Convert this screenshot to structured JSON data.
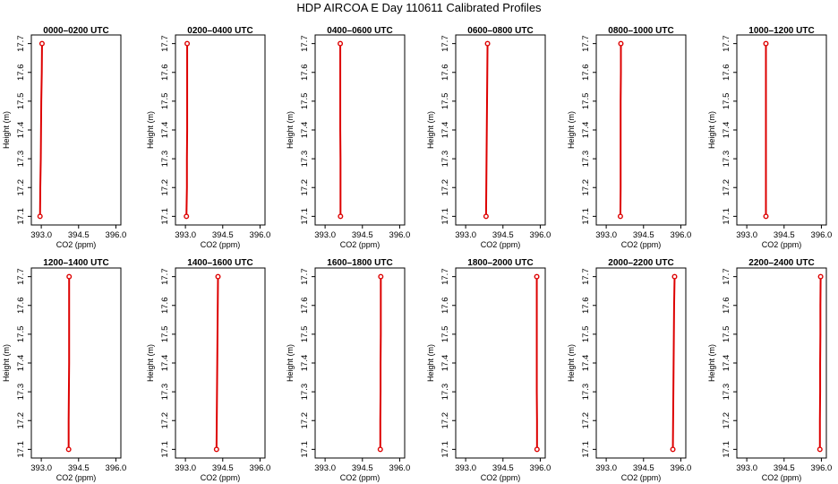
{
  "figure": {
    "title": "HDP AIRCOA E  Day 110611  Calibrated Profiles"
  },
  "colors": {
    "profile": "#dd0000",
    "axis": "#000000"
  },
  "chart_data": [
    {
      "type": "line",
      "title": "0000–0200 UTC",
      "xlabel": "CO2 (ppm)",
      "ylabel": "Height (m)",
      "xlim": [
        392.6,
        396.2
      ],
      "ylim": [
        17.07,
        17.73
      ],
      "xticks": [
        "393.0",
        "394.5",
        "396.0"
      ],
      "yticks": [
        "17.1",
        "17.2",
        "17.3",
        "17.4",
        "17.5",
        "17.6",
        "17.7"
      ],
      "x": [
        392.95,
        392.96,
        392.98,
        392.99,
        393.0,
        393.02,
        393.03
      ],
      "y": [
        17.1,
        17.2,
        17.3,
        17.4,
        17.5,
        17.6,
        17.7
      ]
    },
    {
      "type": "line",
      "title": "0200–0400 UTC",
      "xlabel": "CO2 (ppm)",
      "ylabel": "Height (m)",
      "xlim": [
        392.6,
        396.2
      ],
      "ylim": [
        17.07,
        17.73
      ],
      "xticks": [
        "393.0",
        "394.5",
        "396.0"
      ],
      "yticks": [
        "17.1",
        "17.2",
        "17.3",
        "17.4",
        "17.5",
        "17.6",
        "17.7"
      ],
      "x": [
        393.04,
        393.06,
        393.06,
        393.07,
        393.07,
        393.07,
        393.07
      ],
      "y": [
        17.1,
        17.2,
        17.3,
        17.4,
        17.5,
        17.6,
        17.7
      ]
    },
    {
      "type": "line",
      "title": "0400–0600 UTC",
      "xlabel": "CO2 (ppm)",
      "ylabel": "Height (m)",
      "xlim": [
        392.6,
        396.2
      ],
      "ylim": [
        17.07,
        17.73
      ],
      "xticks": [
        "393.0",
        "394.5",
        "396.0"
      ],
      "yticks": [
        "17.1",
        "17.2",
        "17.3",
        "17.4",
        "17.5",
        "17.6",
        "17.7"
      ],
      "x": [
        393.62,
        393.62,
        393.62,
        393.61,
        393.61,
        393.61,
        393.61
      ],
      "y": [
        17.1,
        17.2,
        17.3,
        17.4,
        17.5,
        17.6,
        17.7
      ]
    },
    {
      "type": "line",
      "title": "0600–0800 UTC",
      "xlabel": "CO2 (ppm)",
      "ylabel": "Height (m)",
      "xlim": [
        392.6,
        396.2
      ],
      "ylim": [
        17.07,
        17.73
      ],
      "xticks": [
        "393.0",
        "394.5",
        "396.0"
      ],
      "yticks": [
        "17.1",
        "17.2",
        "17.3",
        "17.4",
        "17.5",
        "17.6",
        "17.7"
      ],
      "x": [
        393.82,
        393.83,
        393.84,
        393.85,
        393.86,
        393.87,
        393.88
      ],
      "y": [
        17.1,
        17.2,
        17.3,
        17.4,
        17.5,
        17.6,
        17.7
      ]
    },
    {
      "type": "line",
      "title": "0800–1000 UTC",
      "xlabel": "CO2 (ppm)",
      "ylabel": "Height (m)",
      "xlim": [
        392.6,
        396.2
      ],
      "ylim": [
        17.07,
        17.73
      ],
      "xticks": [
        "393.0",
        "394.5",
        "396.0"
      ],
      "yticks": [
        "17.1",
        "17.2",
        "17.3",
        "17.4",
        "17.5",
        "17.6",
        "17.7"
      ],
      "x": [
        393.57,
        393.58,
        393.58,
        393.58,
        393.58,
        393.59,
        393.59
      ],
      "y": [
        17.1,
        17.2,
        17.3,
        17.4,
        17.5,
        17.6,
        17.7
      ]
    },
    {
      "type": "line",
      "title": "1000–1200 UTC",
      "xlabel": "CO2 (ppm)",
      "ylabel": "Height (m)",
      "xlim": [
        392.6,
        396.2
      ],
      "ylim": [
        17.07,
        17.73
      ],
      "xticks": [
        "393.0",
        "394.5",
        "396.0"
      ],
      "yticks": [
        "17.1",
        "17.2",
        "17.3",
        "17.4",
        "17.5",
        "17.6",
        "17.7"
      ],
      "x": [
        393.77,
        393.77,
        393.77,
        393.77,
        393.77,
        393.77,
        393.77
      ],
      "y": [
        17.1,
        17.2,
        17.3,
        17.4,
        17.5,
        17.6,
        17.7
      ]
    },
    {
      "type": "line",
      "title": "1200–1400 UTC",
      "xlabel": "CO2 (ppm)",
      "ylabel": "Height (m)",
      "xlim": [
        392.6,
        396.2
      ],
      "ylim": [
        17.07,
        17.73
      ],
      "xticks": [
        "393.0",
        "394.5",
        "396.0"
      ],
      "yticks": [
        "17.1",
        "17.2",
        "17.3",
        "17.4",
        "17.5",
        "17.6",
        "17.7"
      ],
      "x": [
        394.1,
        394.1,
        394.11,
        394.12,
        394.12,
        394.12,
        394.12
      ],
      "y": [
        17.1,
        17.2,
        17.3,
        17.4,
        17.5,
        17.6,
        17.7
      ]
    },
    {
      "type": "line",
      "title": "1400–1600 UTC",
      "xlabel": "CO2 (ppm)",
      "ylabel": "Height (m)",
      "xlim": [
        392.6,
        396.2
      ],
      "ylim": [
        17.07,
        17.73
      ],
      "xticks": [
        "393.0",
        "394.5",
        "396.0"
      ],
      "yticks": [
        "17.1",
        "17.2",
        "17.3",
        "17.4",
        "17.5",
        "17.6",
        "17.7"
      ],
      "x": [
        394.25,
        394.26,
        394.27,
        394.28,
        394.29,
        394.3,
        394.31
      ],
      "y": [
        17.1,
        17.2,
        17.3,
        17.4,
        17.5,
        17.6,
        17.7
      ]
    },
    {
      "type": "line",
      "title": "1600–1800 UTC",
      "xlabel": "CO2 (ppm)",
      "ylabel": "Height (m)",
      "xlim": [
        392.6,
        396.2
      ],
      "ylim": [
        17.07,
        17.73
      ],
      "xticks": [
        "393.0",
        "394.5",
        "396.0"
      ],
      "yticks": [
        "17.1",
        "17.2",
        "17.3",
        "17.4",
        "17.5",
        "17.6",
        "17.7"
      ],
      "x": [
        395.22,
        395.22,
        395.23,
        395.23,
        395.24,
        395.24,
        395.24
      ],
      "y": [
        17.1,
        17.2,
        17.3,
        17.4,
        17.5,
        17.6,
        17.7
      ]
    },
    {
      "type": "line",
      "title": "1800–2000 UTC",
      "xlabel": "CO2 (ppm)",
      "ylabel": "Height (m)",
      "xlim": [
        392.6,
        396.2
      ],
      "ylim": [
        17.07,
        17.73
      ],
      "xticks": [
        "393.0",
        "394.5",
        "396.0"
      ],
      "yticks": [
        "17.1",
        "17.2",
        "17.3",
        "17.4",
        "17.5",
        "17.6",
        "17.7"
      ],
      "x": [
        395.87,
        395.87,
        395.86,
        395.86,
        395.86,
        395.86,
        395.86
      ],
      "y": [
        17.1,
        17.2,
        17.3,
        17.4,
        17.5,
        17.6,
        17.7
      ]
    },
    {
      "type": "line",
      "title": "2000–2200 UTC",
      "xlabel": "CO2 (ppm)",
      "ylabel": "Height (m)",
      "xlim": [
        392.6,
        396.2
      ],
      "ylim": [
        17.07,
        17.73
      ],
      "xticks": [
        "393.0",
        "394.5",
        "396.0"
      ],
      "yticks": [
        "17.1",
        "17.2",
        "17.3",
        "17.4",
        "17.5",
        "17.6",
        "17.7"
      ],
      "x": [
        395.68,
        395.69,
        395.7,
        395.71,
        395.72,
        395.73,
        395.75
      ],
      "y": [
        17.1,
        17.2,
        17.3,
        17.4,
        17.5,
        17.6,
        17.7
      ]
    },
    {
      "type": "line",
      "title": "2200–2400 UTC",
      "xlabel": "CO2 (ppm)",
      "ylabel": "Height (m)",
      "xlim": [
        392.6,
        396.2
      ],
      "ylim": [
        17.07,
        17.73
      ],
      "xticks": [
        "393.0",
        "394.5",
        "396.0"
      ],
      "yticks": [
        "17.1",
        "17.2",
        "17.3",
        "17.4",
        "17.5",
        "17.6",
        "17.7"
      ],
      "x": [
        395.94,
        395.94,
        395.95,
        395.95,
        395.96,
        395.96,
        395.97
      ],
      "y": [
        17.1,
        17.2,
        17.3,
        17.4,
        17.5,
        17.6,
        17.7
      ]
    }
  ]
}
